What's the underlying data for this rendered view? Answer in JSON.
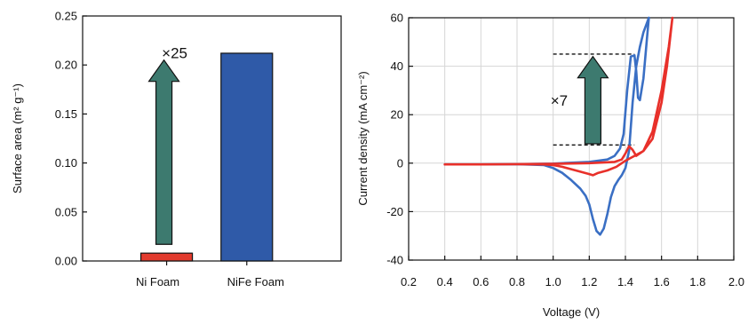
{
  "chart_data": [
    {
      "type": "bar",
      "title": "",
      "xlabel": "",
      "ylabel": "Surface area (m² g⁻¹)",
      "ylim": [
        0,
        0.25
      ],
      "yticks": [
        0.0,
        0.05,
        0.1,
        0.15,
        0.2,
        0.25
      ],
      "ytick_labels": [
        "0.00",
        "0.05",
        "0.10",
        "0.15",
        "0.20",
        "0.25"
      ],
      "categories": [
        "Ni Foam",
        "NiFe Foam"
      ],
      "values": [
        0.008,
        0.212
      ],
      "colors": [
        "#e23b2e",
        "#2f5aa8"
      ],
      "grid": false,
      "annotations": [
        {
          "text": "×25",
          "type": "arrow-up",
          "from": 0.017,
          "to": 0.205,
          "at_category": "Ni Foam",
          "color": "#3d7a6f"
        }
      ]
    },
    {
      "type": "line",
      "title": "",
      "xlabel": "Voltage (V)",
      "ylabel": "Current density (mA cm⁻²)",
      "xlim": [
        0.2,
        2.0
      ],
      "ylim": [
        -40,
        60
      ],
      "xticks": [
        0.2,
        0.4,
        0.6,
        0.8,
        1.0,
        1.2,
        1.4,
        1.6,
        1.8,
        2.0
      ],
      "xtick_labels": [
        "0.2",
        "0.4",
        "0.6",
        "0.8",
        "1.0",
        "1.2",
        "1.4",
        "1.6",
        "1.8",
        "2.0"
      ],
      "yticks": [
        -40,
        -20,
        0,
        20,
        40,
        60
      ],
      "ytick_labels": [
        "-40",
        "-20",
        "0",
        "20",
        "40",
        "60"
      ],
      "grid": true,
      "series": [
        {
          "color": "#3a6fc4",
          "points": [
            [
              0.4,
              -0.5
            ],
            [
              0.6,
              -0.5
            ],
            [
              0.8,
              -0.4
            ],
            [
              0.95,
              -0.8
            ],
            [
              1.0,
              -2.0
            ],
            [
              1.05,
              -4.0
            ],
            [
              1.1,
              -7.0
            ],
            [
              1.15,
              -10.5
            ],
            [
              1.18,
              -13.5
            ],
            [
              1.2,
              -17.0
            ],
            [
              1.22,
              -23.0
            ],
            [
              1.24,
              -28.0
            ],
            [
              1.26,
              -29.5
            ],
            [
              1.28,
              -27.0
            ],
            [
              1.3,
              -21.0
            ],
            [
              1.32,
              -14.0
            ],
            [
              1.34,
              -9.5
            ],
            [
              1.36,
              -7.0
            ],
            [
              1.38,
              -5.0
            ],
            [
              1.4,
              -2.0
            ],
            [
              1.42,
              5.0
            ],
            [
              1.44,
              25.0
            ],
            [
              1.46,
              40.0
            ],
            [
              1.48,
              48.0
            ],
            [
              1.5,
              54.0
            ],
            [
              1.52,
              58.0
            ],
            [
              1.53,
              60.0
            ],
            [
              1.52,
              52.0
            ],
            [
              1.5,
              35.0
            ],
            [
              1.48,
              26.0
            ],
            [
              1.47,
              27.0
            ],
            [
              1.46,
              38.0
            ],
            [
              1.45,
              44.5
            ],
            [
              1.43,
              44.0
            ],
            [
              1.41,
              30.0
            ],
            [
              1.39,
              12.0
            ],
            [
              1.37,
              6.0
            ],
            [
              1.34,
              3.0
            ],
            [
              1.3,
              1.5
            ],
            [
              1.2,
              0.5
            ],
            [
              1.0,
              -0.2
            ],
            [
              0.8,
              -0.4
            ],
            [
              0.6,
              -0.5
            ],
            [
              0.4,
              -0.5
            ]
          ]
        },
        {
          "color": "#e8302a",
          "points": [
            [
              0.4,
              -0.5
            ],
            [
              0.6,
              -0.5
            ],
            [
              0.8,
              -0.4
            ],
            [
              0.95,
              -0.5
            ],
            [
              1.0,
              -0.8
            ],
            [
              1.05,
              -1.5
            ],
            [
              1.1,
              -2.5
            ],
            [
              1.15,
              -3.5
            ],
            [
              1.2,
              -4.5
            ],
            [
              1.22,
              -5.0
            ],
            [
              1.25,
              -4.0
            ],
            [
              1.3,
              -3.0
            ],
            [
              1.35,
              -1.5
            ],
            [
              1.4,
              1.0
            ],
            [
              1.45,
              3.0
            ],
            [
              1.5,
              5.0
            ],
            [
              1.55,
              10.0
            ],
            [
              1.6,
              25.0
            ],
            [
              1.63,
              40.0
            ],
            [
              1.66,
              60.0
            ],
            [
              1.64,
              48.0
            ],
            [
              1.6,
              30.0
            ],
            [
              1.55,
              13.0
            ],
            [
              1.5,
              5.0
            ],
            [
              1.46,
              3.0
            ],
            [
              1.44,
              5.5
            ],
            [
              1.42,
              7.0
            ],
            [
              1.4,
              4.0
            ],
            [
              1.38,
              1.5
            ],
            [
              1.34,
              0.5
            ],
            [
              1.2,
              0.0
            ],
            [
              1.0,
              -0.3
            ],
            [
              0.8,
              -0.4
            ],
            [
              0.6,
              -0.5
            ],
            [
              0.4,
              -0.5
            ]
          ]
        }
      ],
      "annotations": [
        {
          "text": "×7",
          "type": "arrow-up",
          "from": 8,
          "to": 44,
          "at_x": 1.22,
          "color": "#3d7a6f",
          "guide_lines_y": [
            45,
            7.5
          ],
          "guide_lines_x": [
            1.0,
            1.45
          ]
        }
      ]
    }
  ]
}
